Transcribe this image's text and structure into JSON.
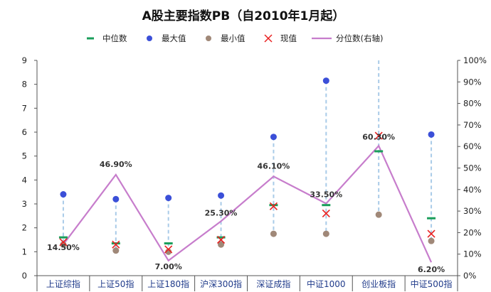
{
  "chart_data": {
    "type": "line",
    "title": "A股主要指数PB（自2010年1月起）",
    "categories": [
      "上证综指",
      "上证50指",
      "上证180指",
      "沪深300指",
      "深证成指",
      "中证1000",
      "创业板指",
      "中证500指"
    ],
    "series": [
      {
        "name": "中位数",
        "type": "marker-dash",
        "axis": "left",
        "color": "#1a9e5a",
        "values": [
          1.6,
          1.35,
          1.35,
          1.6,
          2.95,
          2.95,
          5.2,
          2.4
        ]
      },
      {
        "name": "最大值",
        "type": "marker-dot",
        "axis": "left",
        "color": "#3b4fd8",
        "values": [
          3.4,
          3.2,
          3.25,
          3.35,
          5.8,
          8.15,
          9.0,
          5.9
        ]
      },
      {
        "name": "最小值",
        "type": "marker-dot",
        "axis": "left",
        "color": "#a08878",
        "values": [
          1.3,
          1.05,
          1.0,
          1.3,
          1.75,
          1.75,
          2.55,
          1.45
        ]
      },
      {
        "name": "现值",
        "type": "marker-x",
        "axis": "left",
        "color": "#e82020",
        "values": [
          1.4,
          1.3,
          1.1,
          1.5,
          2.9,
          2.6,
          5.85,
          1.75
        ]
      },
      {
        "name": "分位数(右轴)",
        "type": "line",
        "axis": "right",
        "color": "#c77dcc",
        "values": [
          14.5,
          46.9,
          7.0,
          25.3,
          46.1,
          33.5,
          60.3,
          6.2
        ]
      }
    ],
    "data_labels": [
      "14.50%",
      "46.90%",
      "7.00%",
      "25.30%",
      "46.10%",
      "33.50%",
      "60.30%",
      "6.20%"
    ],
    "ylim": [
      0,
      9
    ],
    "y_ticks": [
      "0",
      "1",
      "2",
      "3",
      "4",
      "5",
      "6",
      "7",
      "8",
      "9"
    ],
    "y2lim": [
      0,
      100
    ],
    "y2_ticks": [
      "0%",
      "10%",
      "20%",
      "30%",
      "40%",
      "50%",
      "60%",
      "70%",
      "80%",
      "90%",
      "100%"
    ],
    "legend_position": "top",
    "grid": false
  }
}
